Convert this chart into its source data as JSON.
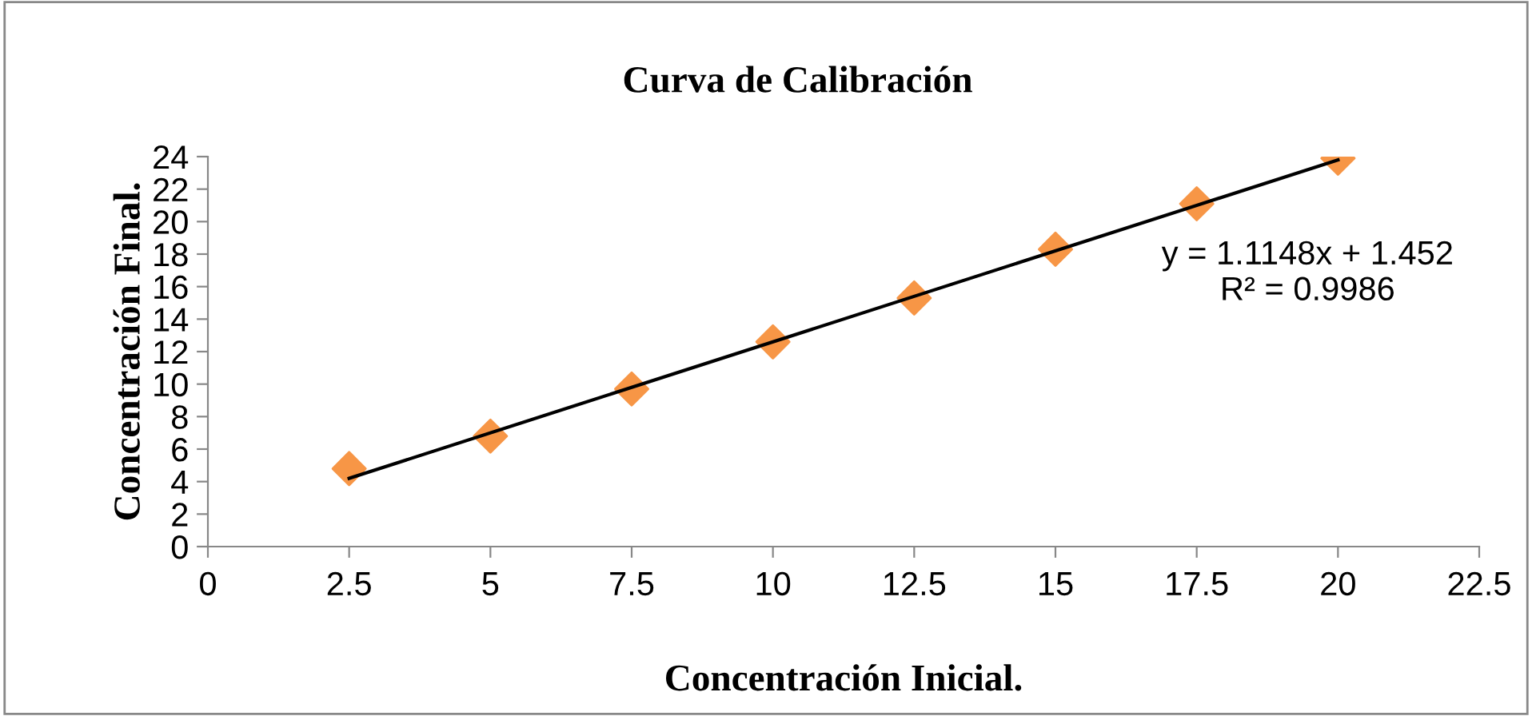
{
  "chart_data": {
    "type": "scatter",
    "title": "Curva de Calibración",
    "xlabel": "Concentración Inicial.",
    "ylabel": "Concentración Final.",
    "x": [
      2.5,
      5,
      7.5,
      10,
      12.5,
      15,
      17.5,
      20
    ],
    "series": [
      {
        "color": "#f79646",
        "marker": "diamond",
        "values": [
          4.8,
          6.8,
          9.7,
          12.6,
          15.3,
          18.3,
          21.1,
          23.9
        ]
      },
      {
        "type": "line",
        "color": "#000000",
        "marker": "none",
        "x": [
          2.5,
          20
        ],
        "values": [
          4.2,
          23.8
        ]
      }
    ],
    "annotations": [
      "y = 1.1148x + 1.452\nR² = 0.9986"
    ],
    "xlim": [
      0,
      22.5
    ],
    "xticks": [
      0,
      2.5,
      5,
      7.5,
      10,
      12.5,
      15,
      17.5,
      20,
      22.5
    ],
    "ylim": [
      0,
      24
    ],
    "yticks": [
      0,
      2,
      4,
      6,
      8,
      10,
      12,
      14,
      16,
      18,
      20,
      22,
      24
    ],
    "grid": false,
    "legend": false
  }
}
